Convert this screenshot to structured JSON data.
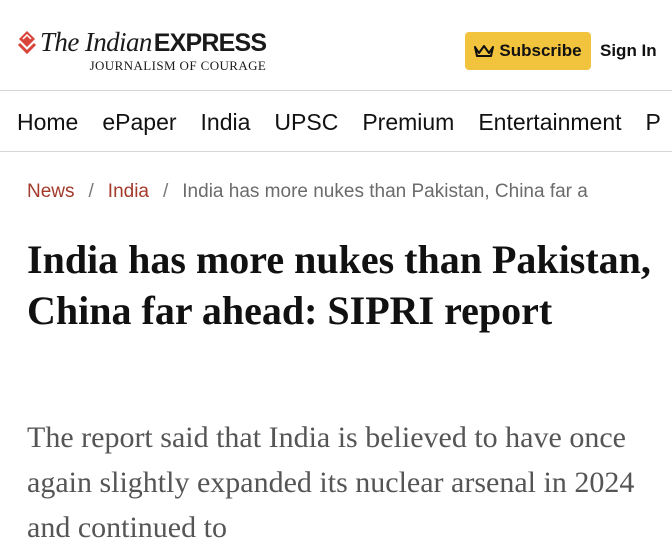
{
  "header": {
    "logo": {
      "serif_text": "The Indian",
      "bold_text": "EXPRESS",
      "tagline": "JOURNALISM OF COURAGE"
    },
    "subscribe_label": "Subscribe",
    "signin_label": "Sign In",
    "colors": {
      "subscribe_bg": "#f2c33d",
      "logo_mark": "#d9453b"
    }
  },
  "nav": {
    "items": [
      "Home",
      "ePaper",
      "India",
      "UPSC",
      "Premium",
      "Entertainment",
      "P"
    ]
  },
  "breadcrumb": {
    "items": [
      "News",
      "India"
    ],
    "separator": "/",
    "current": "India has more nukes than Pakistan, China far a"
  },
  "article": {
    "headline": "India has more nukes than Pakistan, China far ahead: SIPRI report",
    "summary": "The report said that India is believed to have once again slightly expanded its nuclear arsenal in 2024 and continued to"
  }
}
